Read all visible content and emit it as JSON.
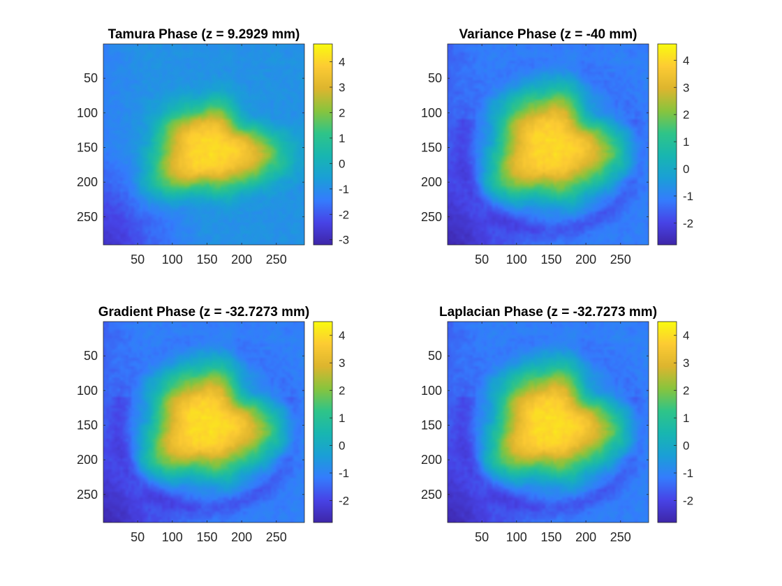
{
  "colormap": "parula",
  "colors": {
    "background": "#ffffff",
    "axis": "#262626",
    "parula_stops": [
      "#3e26a8",
      "#4743e6",
      "#347cfd",
      "#1a9fd6",
      "#18b6b0",
      "#2fc488",
      "#88c43d",
      "#ddb52e",
      "#fdcb33",
      "#f9fb0e"
    ]
  },
  "chart_data": [
    {
      "type": "heatmap",
      "title": "Tamura Phase (z = 9.2929 mm)",
      "xlabel": "",
      "ylabel": "",
      "xlim": [
        0.5,
        290.5
      ],
      "ylim": [
        0.5,
        290.5
      ],
      "y_direction": "reverse",
      "xticks": [
        50,
        100,
        150,
        200,
        250
      ],
      "yticks": [
        50,
        100,
        150,
        200,
        250
      ],
      "xtick_labels": [
        "50",
        "100",
        "150",
        "200",
        "250"
      ],
      "ytick_labels": [
        "50",
        "100",
        "150",
        "200",
        "250"
      ],
      "colorbar": {
        "clim": [
          -3.2,
          4.7
        ],
        "ticks": [
          4,
          3,
          2,
          1,
          0,
          -1,
          -2,
          -3
        ],
        "tick_labels": [
          "4",
          "3",
          "2",
          "1",
          "0",
          "-1",
          "-2",
          "-3"
        ]
      },
      "field": {
        "background": -0.9,
        "corner_dark": -2.6,
        "blob_peak": 4.1,
        "blob_center": [
          155,
          155
        ],
        "blob_radii": [
          85,
          60
        ],
        "ring": 0
      }
    },
    {
      "type": "heatmap",
      "title": "Variance Phase (z = -40 mm)",
      "xlabel": "",
      "ylabel": "",
      "xlim": [
        0.5,
        290.5
      ],
      "ylim": [
        0.5,
        290.5
      ],
      "y_direction": "reverse",
      "xticks": [
        50,
        100,
        150,
        200,
        250
      ],
      "yticks": [
        50,
        100,
        150,
        200,
        250
      ],
      "xtick_labels": [
        "50",
        "100",
        "150",
        "200",
        "250"
      ],
      "ytick_labels": [
        "50",
        "100",
        "150",
        "200",
        "250"
      ],
      "colorbar": {
        "clim": [
          -2.8,
          4.6
        ],
        "ticks": [
          4,
          3,
          2,
          1,
          0,
          -1,
          -2
        ],
        "tick_labels": [
          "4",
          "3",
          "2",
          "1",
          "0",
          "-1",
          "-2"
        ]
      },
      "field": {
        "background": -1.1,
        "corner_dark": -2.5,
        "blob_peak": 4.0,
        "blob_center": [
          150,
          150
        ],
        "blob_radii": [
          85,
          75
        ],
        "ring": 1
      }
    },
    {
      "type": "heatmap",
      "title": "Gradient Phase (z = -32.7273 mm)",
      "xlabel": "",
      "ylabel": "",
      "xlim": [
        0.5,
        290.5
      ],
      "ylim": [
        0.5,
        290.5
      ],
      "y_direction": "reverse",
      "xticks": [
        50,
        100,
        150,
        200,
        250
      ],
      "yticks": [
        50,
        100,
        150,
        200,
        250
      ],
      "xtick_labels": [
        "50",
        "100",
        "150",
        "200",
        "250"
      ],
      "ytick_labels": [
        "50",
        "100",
        "150",
        "200",
        "250"
      ],
      "colorbar": {
        "clim": [
          -2.8,
          4.5
        ],
        "ticks": [
          4,
          3,
          2,
          1,
          0,
          -1,
          -2
        ],
        "tick_labels": [
          "4",
          "3",
          "2",
          "1",
          "0",
          "-1",
          "-2"
        ]
      },
      "field": {
        "background": -1.1,
        "corner_dark": -2.5,
        "blob_peak": 4.0,
        "blob_center": [
          150,
          150
        ],
        "blob_radii": [
          85,
          75
        ],
        "ring": 1
      }
    },
    {
      "type": "heatmap",
      "title": "Laplacian Phase (z = -32.7273 mm)",
      "xlabel": "",
      "ylabel": "",
      "xlim": [
        0.5,
        290.5
      ],
      "ylim": [
        0.5,
        290.5
      ],
      "y_direction": "reverse",
      "xticks": [
        50,
        100,
        150,
        200,
        250
      ],
      "yticks": [
        50,
        100,
        150,
        200,
        250
      ],
      "xtick_labels": [
        "50",
        "100",
        "150",
        "200",
        "250"
      ],
      "ytick_labels": [
        "50",
        "100",
        "150",
        "200",
        "250"
      ],
      "colorbar": {
        "clim": [
          -2.8,
          4.5
        ],
        "ticks": [
          4,
          3,
          2,
          1,
          0,
          -1,
          -2
        ],
        "tick_labels": [
          "4",
          "3",
          "2",
          "1",
          "0",
          "-1",
          "-2"
        ]
      },
      "field": {
        "background": -1.1,
        "corner_dark": -2.5,
        "blob_peak": 4.0,
        "blob_center": [
          150,
          150
        ],
        "blob_radii": [
          85,
          75
        ],
        "ring": 1
      }
    }
  ]
}
